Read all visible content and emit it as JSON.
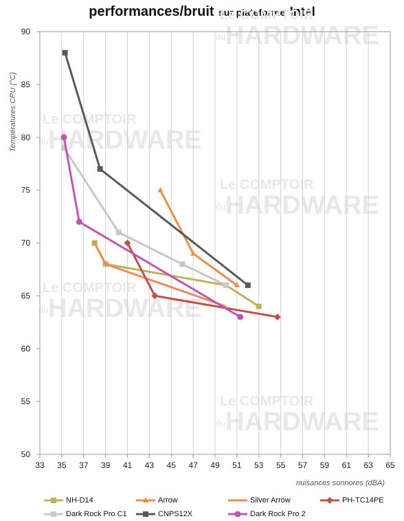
{
  "title": {
    "main": "performances/bruit",
    "mid": "sur plateforme",
    "end": "Intel"
  },
  "watermark": {
    "line1": "Le COMPTOIR",
    "du": "du",
    "line2": "HARDWARE"
  },
  "chart_data": {
    "type": "line",
    "xlabel": "nuisances sonnores (dBA)",
    "ylabel": "Températures CPU (°C)",
    "xlim": [
      33,
      65
    ],
    "ylim": [
      50,
      90
    ],
    "xticks": [
      33,
      35,
      37,
      39,
      41,
      43,
      45,
      47,
      49,
      51,
      53,
      55,
      57,
      59,
      61,
      63,
      65
    ],
    "yticks": [
      50,
      55,
      60,
      65,
      70,
      75,
      80,
      85,
      90
    ],
    "grid": "vertical",
    "legend": "bottom",
    "series": [
      {
        "name": "NH-D14",
        "color": "#BFB25F",
        "marker": "square",
        "points": [
          [
            38,
            70
          ],
          [
            39,
            68
          ],
          [
            50,
            66
          ],
          [
            53,
            64
          ]
        ]
      },
      {
        "name": "Arrow",
        "color": "#E8904A",
        "marker": "triangle",
        "points": [
          [
            44,
            75
          ],
          [
            47,
            69
          ],
          [
            51,
            66
          ]
        ]
      },
      {
        "name": "Silver Arrow",
        "color": "#E88A5A",
        "marker": "none",
        "points": [
          [
            38,
            70
          ],
          [
            39,
            68
          ],
          [
            50,
            64
          ]
        ]
      },
      {
        "name": "PH-TC14PE",
        "color": "#C0504D",
        "marker": "diamond",
        "points": [
          [
            41,
            70
          ],
          [
            43.5,
            65
          ],
          [
            54.7,
            63
          ]
        ]
      },
      {
        "name": "Dark Rock Pro C1",
        "color": "#C8C8C8",
        "marker": "square",
        "points": [
          [
            35.2,
            79
          ],
          [
            40.2,
            71
          ],
          [
            46,
            68
          ],
          [
            50,
            66
          ]
        ]
      },
      {
        "name": "CNPS12X",
        "color": "#595959",
        "marker": "square",
        "points": [
          [
            35.3,
            88
          ],
          [
            38.5,
            77
          ],
          [
            52,
            66
          ]
        ]
      },
      {
        "name": "Dark Rock Pro 2",
        "color": "#C055B0",
        "marker": "circle",
        "points": [
          [
            35.2,
            80
          ],
          [
            36.6,
            72
          ],
          [
            51.3,
            63
          ]
        ]
      }
    ]
  }
}
